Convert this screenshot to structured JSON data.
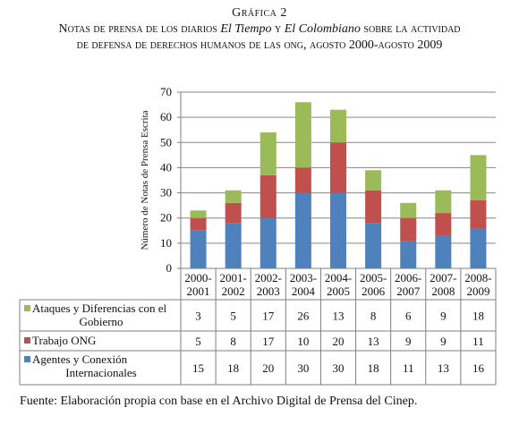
{
  "figure": {
    "label": "Gráfica 2",
    "title_line1_a": "Notas de prensa de los diarios ",
    "title_line1_b": "El Tiempo",
    "title_line1_c": " y ",
    "title_line1_d": "El Colombiano",
    "title_line1_e": " sobre la actividad",
    "title_line2": "de defensa de derechos humanos de las ong, agosto 2000-agosto 2009",
    "source": "Fuente: Elaboración propia con base en el Archivo Digital de Prensa del Cinep."
  },
  "colors": {
    "ataques": "#9bbb59",
    "trabajo": "#c0504d",
    "agentes": "#4f81bd"
  },
  "chart_data": {
    "type": "bar",
    "stacked": true,
    "ylabel": "Número de Notas de Prensa Escrita",
    "xlabel": "",
    "ylim": [
      0,
      70
    ],
    "yticks": [
      0,
      10,
      20,
      30,
      40,
      50,
      60,
      70
    ],
    "grid": true,
    "legend": "data-table",
    "categories": [
      [
        "2000-",
        "2001"
      ],
      [
        "2001-",
        "2002"
      ],
      [
        "2002-",
        "2003"
      ],
      [
        "2003-",
        "2004"
      ],
      [
        "2004-",
        "2005"
      ],
      [
        "2005-",
        "2006"
      ],
      [
        "2006-",
        "2007"
      ],
      [
        "2007-",
        "2008"
      ],
      [
        "2008-",
        "2009"
      ]
    ],
    "series": [
      {
        "name": "Agentes y Conexión Internacionales",
        "name_lines": [
          "Agentes y Conexión",
          "Internacionales"
        ],
        "color_key": "agentes",
        "values": [
          15,
          18,
          20,
          30,
          30,
          18,
          11,
          13,
          16
        ]
      },
      {
        "name": "Trabajo ONG",
        "name_lines": [
          "Trabajo ONG"
        ],
        "color_key": "trabajo",
        "values": [
          5,
          8,
          17,
          10,
          20,
          13,
          9,
          9,
          11
        ]
      },
      {
        "name": "Ataques y Diferencias con el Gobierno",
        "name_lines": [
          "Ataques y Diferencias con el",
          "Gobierno"
        ],
        "color_key": "ataques",
        "values": [
          3,
          5,
          17,
          26,
          13,
          8,
          6,
          9,
          18
        ]
      }
    ],
    "table_order": [
      2,
      1,
      0
    ]
  }
}
